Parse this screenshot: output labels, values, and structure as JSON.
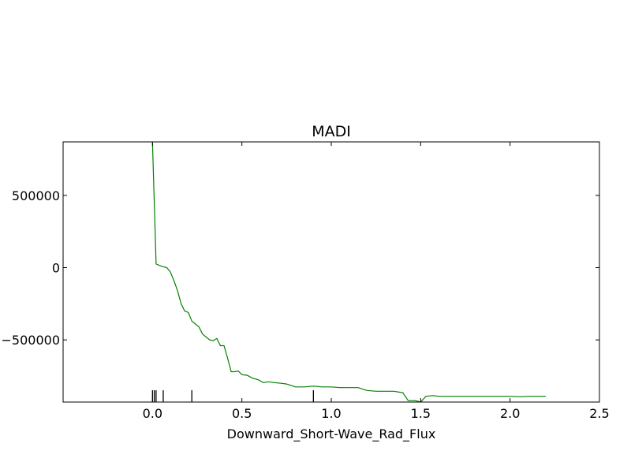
{
  "chart_data": {
    "type": "line",
    "title": "MADI",
    "xlabel": "Downward_Short-Wave_Rad_Flux",
    "ylabel": "",
    "xlim": [
      -0.5,
      2.5
    ],
    "ylim": [
      -930000,
      870000
    ],
    "xticks": [
      {
        "value": 0.0,
        "label": "0.0"
      },
      {
        "value": 0.5,
        "label": "0.5"
      },
      {
        "value": 1.0,
        "label": "1.0"
      },
      {
        "value": 1.5,
        "label": "1.5"
      },
      {
        "value": 2.0,
        "label": "2.0"
      },
      {
        "value": 2.5,
        "label": "2.5"
      }
    ],
    "yticks": [
      {
        "value": 500000,
        "label": "500000"
      },
      {
        "value": 0,
        "label": "0"
      },
      {
        "value": -500000,
        "label": "−500000"
      }
    ],
    "grid": false,
    "line_color": "#008000",
    "series": [
      {
        "x": [
          0.0,
          0.02,
          0.05,
          0.08,
          0.1,
          0.12,
          0.14,
          0.16,
          0.18,
          0.2,
          0.22,
          0.24,
          0.26,
          0.28,
          0.3,
          0.32,
          0.34,
          0.36,
          0.38,
          0.4,
          0.42,
          0.44,
          0.46,
          0.48,
          0.5,
          0.53,
          0.56,
          0.59,
          0.62,
          0.65,
          0.68,
          0.72,
          0.75,
          0.8,
          0.85,
          0.9,
          0.95,
          1.0,
          1.05,
          1.1,
          1.15,
          1.2,
          1.25,
          1.3,
          1.35,
          1.4,
          1.43,
          1.47,
          1.5,
          1.53,
          1.57,
          1.6,
          1.7,
          1.8,
          1.9,
          1.95,
          2.0,
          2.05,
          2.07,
          2.1,
          2.15,
          2.2
        ],
        "y": [
          870000,
          25000,
          10000,
          0,
          -30000,
          -90000,
          -160000,
          -250000,
          -300000,
          -310000,
          -370000,
          -390000,
          -410000,
          -460000,
          -480000,
          -500000,
          -505000,
          -490000,
          -540000,
          -540000,
          -625000,
          -720000,
          -720000,
          -715000,
          -740000,
          -745000,
          -765000,
          -775000,
          -795000,
          -790000,
          -795000,
          -800000,
          -805000,
          -825000,
          -825000,
          -820000,
          -825000,
          -825000,
          -830000,
          -830000,
          -830000,
          -850000,
          -855000,
          -855000,
          -855000,
          -865000,
          -920000,
          -920000,
          -930000,
          -890000,
          -885000,
          -890000,
          -890000,
          -890000,
          -890000,
          -890000,
          -890000,
          -893000,
          -893000,
          -890000,
          -890000,
          -890000
        ]
      }
    ],
    "rug": [
      0.0,
      0.01,
      0.02,
      0.06,
      0.22,
      0.9
    ]
  }
}
